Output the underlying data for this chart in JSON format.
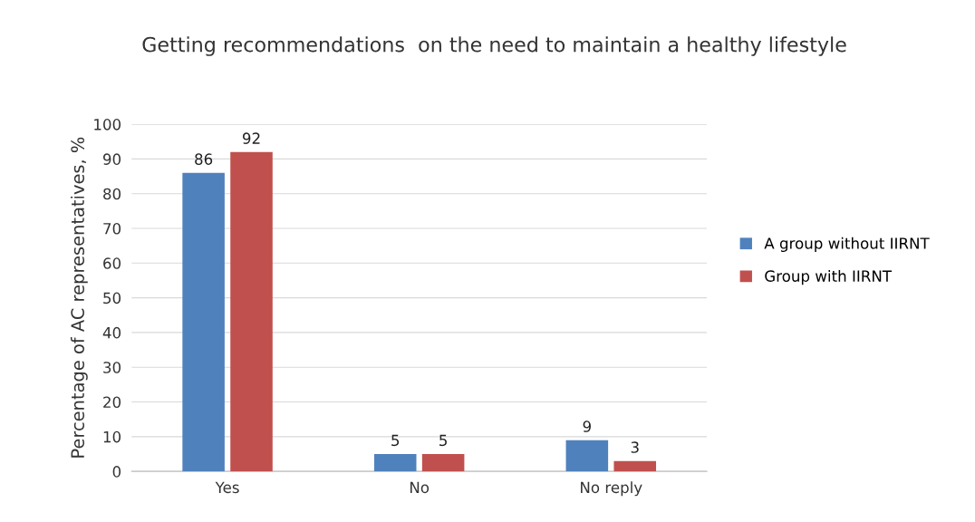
{
  "chart_data": {
    "type": "bar",
    "title": "Getting recommendations  on the need to maintain a healthy lifestyle",
    "ylabel": "Percentage of AC representatives, %",
    "categories": [
      "Yes",
      "No",
      "No reply"
    ],
    "series": [
      {
        "name": "A group without IIRNT",
        "color": "#4f81bd",
        "values": [
          86,
          5,
          9
        ]
      },
      {
        "name": "Group with IIRNT",
        "color": "#c0504d",
        "values": [
          92,
          5,
          3
        ]
      }
    ],
    "ylim": [
      0,
      100
    ],
    "yticks": [
      0,
      10,
      20,
      30,
      40,
      50,
      60,
      70,
      80,
      90,
      100
    ],
    "grid": "y",
    "legend": "right",
    "data_labels": true
  }
}
